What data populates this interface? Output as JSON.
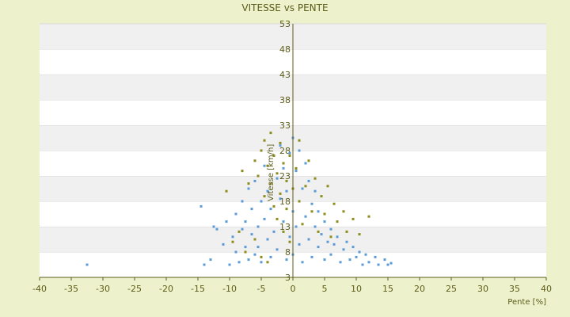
{
  "chart_data": {
    "type": "scatter",
    "title": "VITESSE vs PENTE",
    "xlabel": "Pente [%]",
    "ylabel": "Vitesse [km/h]",
    "xlim": [
      -40,
      40
    ],
    "ylim": [
      3,
      53
    ],
    "xticks": [
      -40,
      -35,
      -30,
      -25,
      -20,
      -15,
      -10,
      -5,
      0,
      5,
      10,
      15,
      20,
      25,
      30,
      35,
      40
    ],
    "yticks": [
      3,
      8,
      13,
      18,
      23,
      28,
      33,
      38,
      43,
      48,
      53
    ],
    "grid": "horizontal-bands",
    "legend": "none",
    "series": [
      {
        "color": "#5b9bd5",
        "points": [
          [
            -32.5,
            5.5
          ],
          [
            -14.5,
            17.0
          ],
          [
            -14.0,
            5.5
          ],
          [
            -13.0,
            6.5
          ],
          [
            -12.5,
            13.0
          ],
          [
            -12.0,
            12.5
          ],
          [
            -11.0,
            9.5
          ],
          [
            -10.5,
            14.0
          ],
          [
            -10.0,
            5.5
          ],
          [
            -9.5,
            11.0
          ],
          [
            -9.0,
            8.0
          ],
          [
            -9.0,
            15.5
          ],
          [
            -8.5,
            6.0
          ],
          [
            -8.0,
            12.5
          ],
          [
            -8.0,
            18.0
          ],
          [
            -7.5,
            9.0
          ],
          [
            -7.5,
            14.0
          ],
          [
            -7.0,
            6.5
          ],
          [
            -7.0,
            20.5
          ],
          [
            -6.5,
            11.5
          ],
          [
            -6.5,
            16.5
          ],
          [
            -6.0,
            7.5
          ],
          [
            -6.0,
            22.0
          ],
          [
            -5.5,
            13.0
          ],
          [
            -5.5,
            9.0
          ],
          [
            -5.0,
            18.0
          ],
          [
            -5.0,
            6.0
          ],
          [
            -4.5,
            14.5
          ],
          [
            -4.5,
            25.0
          ],
          [
            -4.0,
            10.5
          ],
          [
            -4.0,
            20.0
          ],
          [
            -3.5,
            7.0
          ],
          [
            -3.5,
            16.5
          ],
          [
            -3.0,
            27.0
          ],
          [
            -3.0,
            12.0
          ],
          [
            -2.5,
            22.5
          ],
          [
            -2.5,
            8.5
          ],
          [
            -2.0,
            18.5
          ],
          [
            -2.0,
            29.0
          ],
          [
            -1.5,
            14.0
          ],
          [
            -1.5,
            24.5
          ],
          [
            -1.0,
            6.5
          ],
          [
            -1.0,
            20.0
          ],
          [
            -0.5,
            27.5
          ],
          [
            -0.5,
            11.0
          ],
          [
            0.0,
            30.5
          ],
          [
            0.0,
            16.0
          ],
          [
            0.0,
            7.5
          ],
          [
            0.5,
            24.0
          ],
          [
            0.5,
            13.0
          ],
          [
            1.0,
            28.0
          ],
          [
            1.0,
            9.5
          ],
          [
            1.5,
            20.5
          ],
          [
            1.5,
            6.0
          ],
          [
            2.0,
            25.5
          ],
          [
            2.0,
            15.0
          ],
          [
            2.5,
            10.5
          ],
          [
            2.5,
            22.0
          ],
          [
            3.0,
            17.5
          ],
          [
            3.0,
            7.0
          ],
          [
            3.5,
            13.0
          ],
          [
            3.5,
            20.0
          ],
          [
            4.0,
            9.0
          ],
          [
            4.0,
            16.0
          ],
          [
            4.5,
            11.5
          ],
          [
            5.0,
            14.0
          ],
          [
            5.0,
            6.5
          ],
          [
            5.5,
            10.0
          ],
          [
            6.0,
            12.5
          ],
          [
            6.0,
            7.5
          ],
          [
            6.5,
            9.5
          ],
          [
            7.0,
            11.0
          ],
          [
            7.5,
            6.0
          ],
          [
            8.0,
            8.5
          ],
          [
            8.5,
            10.0
          ],
          [
            9.0,
            6.5
          ],
          [
            9.5,
            9.0
          ],
          [
            10.0,
            7.0
          ],
          [
            10.5,
            8.0
          ],
          [
            11.0,
            5.5
          ],
          [
            11.5,
            7.5
          ],
          [
            12.0,
            6.0
          ],
          [
            13.0,
            7.0
          ],
          [
            13.5,
            5.5
          ],
          [
            14.5,
            6.5
          ],
          [
            15.0,
            5.5
          ],
          [
            15.5,
            5.8
          ]
        ]
      },
      {
        "color": "#8c8c1a",
        "points": [
          [
            -10.5,
            20.0
          ],
          [
            -8.0,
            24.0
          ],
          [
            -7.0,
            21.5
          ],
          [
            -6.0,
            26.0
          ],
          [
            -5.5,
            23.0
          ],
          [
            -5.0,
            28.0
          ],
          [
            -4.5,
            19.0
          ],
          [
            -4.5,
            30.0
          ],
          [
            -4.0,
            25.0
          ],
          [
            -3.5,
            21.5
          ],
          [
            -3.5,
            31.5
          ],
          [
            -3.0,
            17.0
          ],
          [
            -3.0,
            27.0
          ],
          [
            -2.5,
            23.5
          ],
          [
            -2.5,
            14.5
          ],
          [
            -2.0,
            29.5
          ],
          [
            -2.0,
            19.5
          ],
          [
            -1.5,
            25.5
          ],
          [
            -1.5,
            12.0
          ],
          [
            -1.0,
            22.0
          ],
          [
            -1.0,
            16.5
          ],
          [
            -0.5,
            27.0
          ],
          [
            -0.5,
            10.0
          ],
          [
            0.0,
            20.5
          ],
          [
            0.5,
            24.5
          ],
          [
            1.0,
            18.0
          ],
          [
            1.0,
            30.0
          ],
          [
            1.5,
            13.5
          ],
          [
            2.0,
            21.0
          ],
          [
            2.5,
            26.0
          ],
          [
            3.0,
            16.0
          ],
          [
            3.5,
            22.5
          ],
          [
            4.0,
            12.0
          ],
          [
            4.5,
            19.0
          ],
          [
            5.0,
            15.5
          ],
          [
            5.5,
            21.0
          ],
          [
            6.0,
            11.0
          ],
          [
            6.5,
            17.5
          ],
          [
            7.0,
            14.0
          ],
          [
            8.0,
            16.0
          ],
          [
            8.5,
            12.0
          ],
          [
            9.5,
            14.5
          ],
          [
            10.5,
            11.5
          ],
          [
            12.0,
            15.0
          ],
          [
            -6.0,
            10.5
          ],
          [
            -7.5,
            8.0
          ],
          [
            -5.0,
            7.0
          ],
          [
            -8.5,
            12.0
          ],
          [
            -9.5,
            10.0
          ],
          [
            -4.0,
            6.0
          ]
        ]
      }
    ]
  }
}
